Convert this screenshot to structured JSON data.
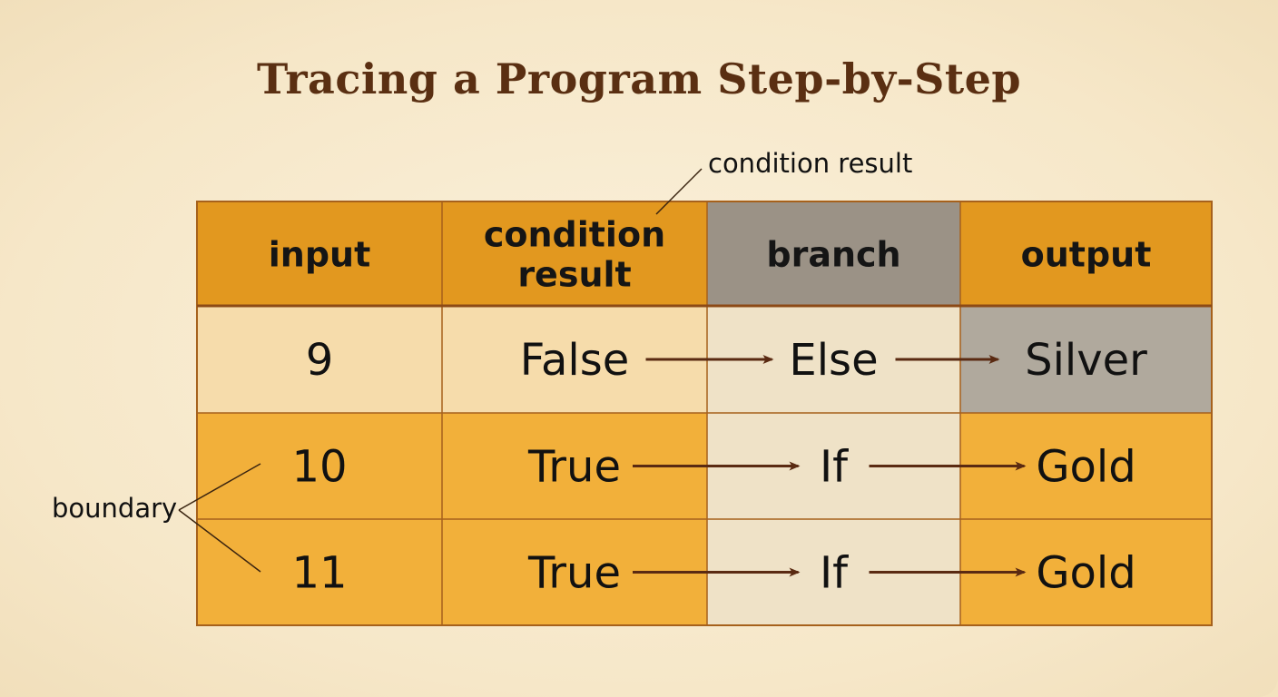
{
  "title": "Tracing a Program Step-by-Step",
  "table": {
    "headers": [
      {
        "lines": [
          "input"
        ]
      },
      {
        "lines": [
          "condition",
          "result"
        ]
      },
      {
        "lines": [
          "branch"
        ]
      },
      {
        "lines": [
          "output"
        ]
      }
    ],
    "rows": [
      {
        "input": "9",
        "condition": "False",
        "branch": "Else",
        "output": "Silver"
      },
      {
        "input": "10",
        "condition": "True",
        "branch": "If",
        "output": "Gold"
      },
      {
        "input": "11",
        "condition": "True",
        "branch": "If",
        "output": "Gold"
      }
    ]
  },
  "annotations": {
    "condition_callout": "condition result",
    "boundary_callout": "boundary"
  },
  "colors": {
    "header_orange": "#e2981f",
    "header_gray": "#9b9286",
    "row_pale_orange": "#f6dcab",
    "row_orange": "#f2b03a",
    "branch_cream": "#efe2c7",
    "output_gray": "#b0a99d",
    "arrow": "#5a2a12",
    "border": "#a6611c",
    "title": "#5a2f12"
  }
}
